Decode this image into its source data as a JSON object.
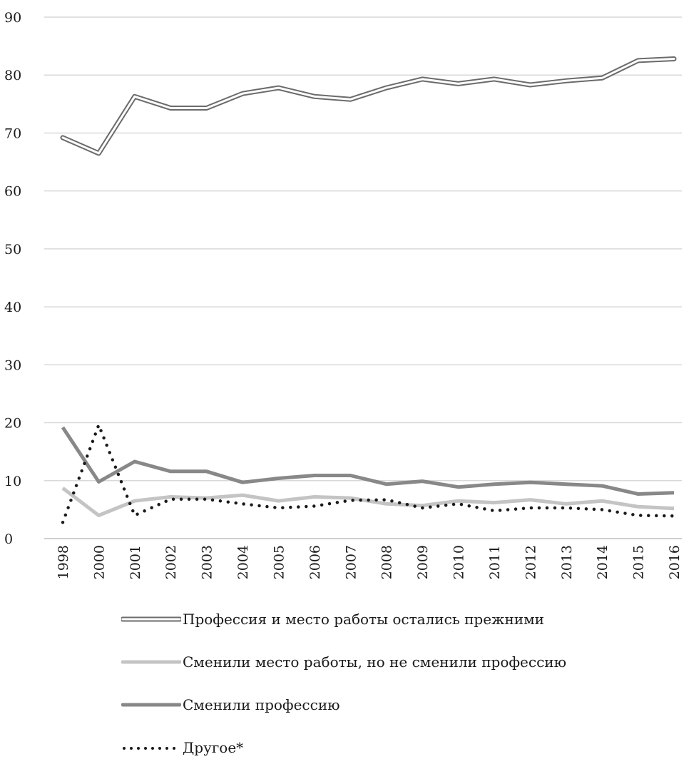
{
  "chart_data": {
    "type": "line",
    "x": [
      "1998",
      "2000",
      "2001",
      "2002",
      "2003",
      "2004",
      "2005",
      "2006",
      "2007",
      "2008",
      "2009",
      "2010",
      "2011",
      "2012",
      "2013",
      "2014",
      "2015",
      "2016"
    ],
    "ylim": [
      0,
      90
    ],
    "yticks": [
      "0",
      "10",
      "20",
      "30",
      "40",
      "50",
      "60",
      "70",
      "80",
      "90"
    ],
    "grid": true,
    "legend_position": "bottom",
    "series": [
      {
        "name": "Профессия и место работы остались прежними",
        "style": "double",
        "color": "#6b6b6b",
        "values": [
          69.2,
          66.5,
          76.3,
          74.3,
          74.3,
          76.8,
          77.8,
          76.3,
          75.8,
          77.8,
          79.3,
          78.5,
          79.3,
          78.3,
          79.0,
          79.5,
          82.5,
          82.8
        ]
      },
      {
        "name": "Сменили место работы, но не сменили профессию",
        "style": "solid-light",
        "color": "#c4c4c4",
        "values": [
          8.7,
          4.0,
          6.5,
          7.2,
          7.0,
          7.5,
          6.5,
          7.2,
          7.0,
          6.0,
          5.7,
          6.5,
          6.2,
          6.7,
          6.0,
          6.5,
          5.5,
          5.2
        ]
      },
      {
        "name": "Сменили профессию",
        "style": "solid-dark",
        "color": "#888888",
        "values": [
          19.2,
          9.8,
          13.3,
          11.6,
          11.6,
          9.7,
          10.4,
          10.9,
          10.9,
          9.4,
          9.9,
          8.9,
          9.4,
          9.7,
          9.4,
          9.1,
          7.7,
          7.9
        ]
      },
      {
        "name": "Другое*",
        "style": "dotted",
        "color": "#1a1a1a",
        "values": [
          2.8,
          19.6,
          4.0,
          6.8,
          6.8,
          6.0,
          5.3,
          5.6,
          6.6,
          6.7,
          5.3,
          6.0,
          4.8,
          5.3,
          5.3,
          5.0,
          4.0,
          3.9
        ]
      }
    ]
  }
}
